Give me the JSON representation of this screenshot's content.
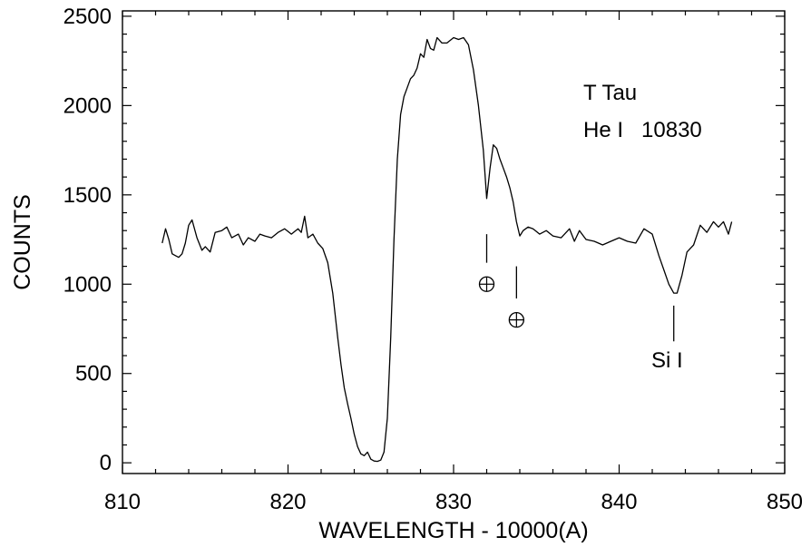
{
  "chart_data": {
    "type": "line",
    "xlabel": "WAVELENGTH - 10000(A)",
    "ylabel": "COUNTS",
    "xlim": [
      810,
      850
    ],
    "ylim": [
      -60,
      2530
    ],
    "x_ticks": [
      810,
      820,
      830,
      840,
      850
    ],
    "y_ticks": [
      0,
      500,
      1000,
      1500,
      2000,
      2500
    ],
    "grid": false,
    "annotations": {
      "object": "T Tau",
      "line": "He I   10830",
      "si_label": "Si I",
      "earth_symbol": "⊕"
    },
    "series": [
      {
        "x": [
          812.4,
          812.6,
          812.8,
          813.0,
          813.2,
          813.4,
          813.6,
          813.8,
          814.0,
          814.2,
          814.5,
          814.8,
          815.0,
          815.3,
          815.6,
          816.0,
          816.3,
          816.6,
          817.0,
          817.3,
          817.6,
          818.0,
          818.3,
          818.6,
          819.0,
          819.4,
          819.8,
          820.2,
          820.6,
          820.8,
          821.0,
          821.2,
          821.5,
          821.8,
          822.1,
          822.4,
          822.7,
          823.0,
          823.2,
          823.4,
          823.6,
          823.8,
          824.0,
          824.2,
          824.4,
          824.6,
          824.8,
          825.0,
          825.2,
          825.4,
          825.6,
          825.8,
          826.0,
          826.2,
          826.4,
          826.6,
          826.8,
          827.0,
          827.2,
          827.4,
          827.6,
          827.8,
          828.0,
          828.2,
          828.4,
          828.6,
          828.8,
          829.0,
          829.3,
          829.6,
          830.0,
          830.3,
          830.6,
          830.9,
          831.2,
          831.5,
          831.8,
          832.0,
          832.2,
          832.4,
          832.6,
          832.8,
          833.0,
          833.2,
          833.4,
          833.6,
          833.8,
          834.0,
          834.2,
          834.5,
          834.8,
          835.2,
          835.6,
          836.0,
          836.5,
          837.0,
          837.3,
          837.6,
          838.0,
          838.5,
          839.0,
          839.5,
          840.0,
          840.5,
          841.0,
          841.5,
          842.0,
          842.4,
          842.7,
          843.0,
          843.3,
          843.5,
          843.8,
          844.1,
          844.5,
          844.9,
          845.3,
          845.7,
          846.0,
          846.3,
          846.6,
          846.8
        ],
        "y": [
          1230,
          1310,
          1250,
          1170,
          1160,
          1150,
          1170,
          1230,
          1330,
          1360,
          1260,
          1190,
          1210,
          1180,
          1290,
          1300,
          1320,
          1260,
          1280,
          1220,
          1260,
          1240,
          1280,
          1270,
          1260,
          1290,
          1310,
          1280,
          1310,
          1290,
          1380,
          1260,
          1280,
          1230,
          1200,
          1120,
          950,
          700,
          550,
          420,
          330,
          250,
          160,
          90,
          50,
          40,
          60,
          20,
          10,
          8,
          15,
          60,
          250,
          700,
          1250,
          1700,
          1950,
          2050,
          2100,
          2150,
          2170,
          2210,
          2290,
          2270,
          2370,
          2320,
          2310,
          2380,
          2350,
          2350,
          2380,
          2370,
          2380,
          2340,
          2200,
          2000,
          1750,
          1480,
          1650,
          1780,
          1760,
          1700,
          1650,
          1600,
          1540,
          1460,
          1350,
          1270,
          1300,
          1320,
          1310,
          1280,
          1300,
          1270,
          1260,
          1310,
          1240,
          1300,
          1250,
          1240,
          1220,
          1240,
          1260,
          1240,
          1230,
          1310,
          1280,
          1160,
          1080,
          1000,
          950,
          950,
          1050,
          1180,
          1220,
          1330,
          1290,
          1350,
          1320,
          1350,
          1280,
          1350
        ]
      }
    ],
    "markers": [
      {
        "x": 832.0,
        "y": 1000,
        "tick_from": 1280,
        "tick_to": 1120
      },
      {
        "x": 833.8,
        "y": 800,
        "tick_from": 1100,
        "tick_to": 920
      },
      {
        "x": 843.3,
        "y": 800,
        "tick_from": 880,
        "tick_to": 680
      }
    ]
  }
}
